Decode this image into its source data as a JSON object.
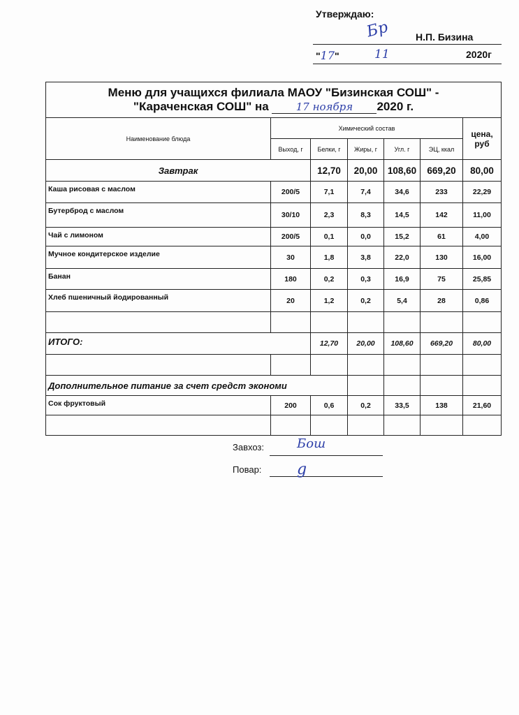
{
  "approval": {
    "label": "Утверждаю:",
    "name": "Н.П. Бизина",
    "day": "17",
    "month": "11",
    "year": "2020г",
    "quote_open": "\"",
    "quote_close": "\""
  },
  "title": {
    "line1": "Меню для учащихся филиала МАОУ \"Бизинская СОШ\" -",
    "line2_prefix": "\"Караченская СОШ\" на",
    "date_handwritten": "17 ноября",
    "line2_suffix": "2020 г."
  },
  "headers": {
    "name": "Наименование блюда",
    "chem": "Химический состав",
    "price": "цена, руб",
    "yield": "Выход, г",
    "protein": "Белки, г",
    "fat": "Жиры, г",
    "carbs": "Угл. г",
    "energy": "ЭЦ, ккал"
  },
  "breakfast": {
    "label": "Завтрак",
    "protein": "12,70",
    "fat": "20,00",
    "carbs": "108,60",
    "energy": "669,20",
    "price": "80,00"
  },
  "items": [
    {
      "name": "Каша рисовая с маслом",
      "yield": "200/5",
      "protein": "7,1",
      "fat": "7,4",
      "carbs": "34,6",
      "energy": "233",
      "price": "22,29"
    },
    {
      "name": "Бутерброд с маслом",
      "yield": "30/10",
      "protein": "2,3",
      "fat": "8,3",
      "carbs": "14,5",
      "energy": "142",
      "price": "11,00"
    },
    {
      "name": "Чай с лимоном",
      "yield": "200/5",
      "protein": "0,1",
      "fat": "0,0",
      "carbs": "15,2",
      "energy": "61",
      "price": "4,00"
    },
    {
      "name": "Мучное кондитерское изделие",
      "yield": "30",
      "protein": "1,8",
      "fat": "3,8",
      "carbs": "22,0",
      "energy": "130",
      "price": "16,00"
    },
    {
      "name": "Банан",
      "yield": "180",
      "protein": "0,2",
      "fat": "0,3",
      "carbs": "16,9",
      "energy": "75",
      "price": "25,85"
    },
    {
      "name": "Хлеб пшеничный йодированный",
      "yield": "20",
      "protein": "1,2",
      "fat": "0,2",
      "carbs": "5,4",
      "energy": "28",
      "price": "0,86"
    }
  ],
  "total": {
    "label": "ИТОГО:",
    "protein": "12,70",
    "fat": "20,00",
    "carbs": "108,60",
    "energy": "669,20",
    "price": "80,00"
  },
  "extra": {
    "label": "Дополнительное питание за счет средст экономи",
    "items": [
      {
        "name": "Сок фруктовый",
        "yield": "200",
        "protein": "0,6",
        "fat": "0,2",
        "carbs": "33,5",
        "energy": "138",
        "price": "21,60"
      }
    ]
  },
  "signatures": {
    "supply": "Завхоз:",
    "cook": "Повар:"
  }
}
